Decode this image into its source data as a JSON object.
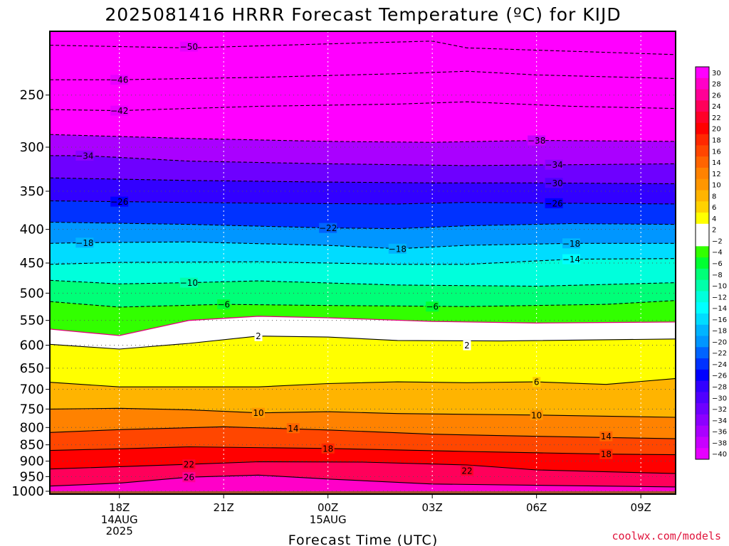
{
  "chart_data": {
    "type": "heatmap",
    "title": "2025081416 HRRR Forecast Temperature (ºC) for KIJD",
    "xlabel": "Forecast Time (UTC)",
    "ylabel": "",
    "credit": "coolwx.com/models",
    "x_ticks": [
      {
        "label": "18Z",
        "sub": [
          "14AUG",
          "2025"
        ]
      },
      {
        "label": "21Z",
        "sub": []
      },
      {
        "label": "00Z",
        "sub": [
          "15AUG"
        ]
      },
      {
        "label": "03Z",
        "sub": []
      },
      {
        "label": "06Z",
        "sub": []
      },
      {
        "label": "09Z",
        "sub": []
      }
    ],
    "x_range_hours": [
      -2,
      16
    ],
    "y_ticks": [
      250,
      300,
      350,
      400,
      450,
      500,
      550,
      600,
      650,
      700,
      750,
      800,
      850,
      900,
      950,
      1000
    ],
    "y_range_hpa": [
      200,
      1010
    ],
    "y_scale": "log",
    "colorbar_labels": [
      30,
      28,
      26,
      24,
      22,
      20,
      18,
      16,
      14,
      12,
      10,
      8,
      6,
      4,
      2,
      -2,
      -4,
      -6,
      -8,
      -10,
      -12,
      -14,
      -16,
      -18,
      -20,
      -22,
      -24,
      -26,
      -28,
      -30,
      -32,
      -34,
      -36,
      -38,
      -40
    ],
    "colorbar_colors": [
      "#ff00ff",
      "#ff00c8",
      "#ff0096",
      "#ff005a",
      "#ff0028",
      "#ff0000",
      "#ff2800",
      "#ff4600",
      "#ff6400",
      "#ff8200",
      "#ff9600",
      "#ffb400",
      "#ffd200",
      "#ffff00",
      "#ffffff",
      "#ffffff",
      "#32ff00",
      "#00ff32",
      "#00ff78",
      "#00ffaa",
      "#00ffdc",
      "#00ffff",
      "#00dcff",
      "#00b4ff",
      "#0096ff",
      "#0064ff",
      "#0032ff",
      "#0000ff",
      "#3200ff",
      "#5000ff",
      "#6e00ff",
      "#8c00ff",
      "#aa00ff",
      "#c800ff",
      "#e600ff"
    ],
    "contours": [
      {
        "level": -50,
        "points": [
          [
            -2,
            210
          ],
          [
            2,
            212
          ],
          [
            6,
            209
          ],
          [
            9,
            207
          ],
          [
            10,
            212
          ],
          [
            16,
            217
          ]
        ],
        "labels": [
          [
            2,
            211
          ]
        ]
      },
      {
        "level": -46,
        "points": [
          [
            -2,
            237
          ],
          [
            0,
            237
          ],
          [
            4,
            235
          ],
          [
            8,
            232
          ],
          [
            10,
            230
          ],
          [
            12,
            233
          ],
          [
            16,
            236
          ]
        ],
        "labels": [
          [
            0,
            237
          ]
        ]
      },
      {
        "level": -42,
        "points": [
          [
            -2,
            263
          ],
          [
            0,
            264
          ],
          [
            4,
            260
          ],
          [
            8,
            258
          ],
          [
            10,
            256
          ],
          [
            13,
            260
          ],
          [
            16,
            262
          ]
        ],
        "labels": [
          [
            0,
            264
          ]
        ]
      },
      {
        "level": -38,
        "points": [
          [
            -2,
            287
          ],
          [
            2,
            291
          ],
          [
            6,
            294
          ],
          [
            9,
            295
          ],
          [
            12,
            293
          ],
          [
            16,
            294
          ]
        ],
        "labels": [
          [
            12,
            293
          ]
        ]
      },
      {
        "level": -34,
        "points": [
          [
            -2,
            309
          ],
          [
            -1,
            309
          ],
          [
            2,
            315
          ],
          [
            6,
            318
          ],
          [
            10,
            320
          ],
          [
            13,
            319
          ],
          [
            16,
            318
          ]
        ],
        "labels": [
          [
            -1,
            309
          ],
          [
            12.5,
            319
          ]
        ]
      },
      {
        "level": -30,
        "points": [
          [
            -2,
            334
          ],
          [
            2,
            337
          ],
          [
            6,
            339
          ],
          [
            9,
            340
          ],
          [
            12,
            340
          ],
          [
            16,
            341
          ]
        ],
        "labels": [
          [
            12.5,
            340
          ]
        ]
      },
      {
        "level": -26,
        "points": [
          [
            -2,
            362
          ],
          [
            0,
            363
          ],
          [
            4,
            365
          ],
          [
            8,
            366
          ],
          [
            10,
            364
          ],
          [
            12.5,
            365
          ],
          [
            16,
            366
          ]
        ],
        "labels": [
          [
            0,
            363
          ],
          [
            12.5,
            365
          ]
        ]
      },
      {
        "level": -22,
        "points": [
          [
            -2,
            390
          ],
          [
            2,
            393
          ],
          [
            6,
            398
          ],
          [
            8,
            399
          ],
          [
            10,
            395
          ],
          [
            13,
            392
          ],
          [
            16,
            393
          ]
        ],
        "labels": [
          [
            6,
            398
          ]
        ]
      },
      {
        "level": -18,
        "points": [
          [
            -2,
            420
          ],
          [
            -1,
            419
          ],
          [
            2,
            418
          ],
          [
            6,
            423
          ],
          [
            8,
            428
          ],
          [
            10,
            423
          ],
          [
            13,
            420
          ],
          [
            16,
            420
          ]
        ],
        "labels": [
          [
            -1,
            419
          ],
          [
            8,
            428
          ],
          [
            13,
            420
          ]
        ]
      },
      {
        "level": -14,
        "points": [
          [
            -2,
            452
          ],
          [
            0,
            449
          ],
          [
            4,
            448
          ],
          [
            8,
            452
          ],
          [
            10,
            452
          ],
          [
            13,
            444
          ],
          [
            16,
            443
          ]
        ],
        "labels": [
          [
            13,
            444
          ]
        ]
      },
      {
        "level": -10,
        "points": [
          [
            -2,
            478
          ],
          [
            0,
            484
          ],
          [
            2,
            482
          ],
          [
            4,
            479
          ],
          [
            8,
            486
          ],
          [
            12,
            488
          ],
          [
            16,
            482
          ]
        ],
        "labels": [
          [
            2,
            482
          ]
        ]
      },
      {
        "level": -6,
        "points": [
          [
            -2,
            515
          ],
          [
            0,
            525
          ],
          [
            3,
            520
          ],
          [
            6,
            522
          ],
          [
            10,
            524
          ],
          [
            14,
            520
          ],
          [
            16,
            513
          ]
        ],
        "labels": [
          [
            3,
            520
          ],
          [
            9,
            524
          ]
        ]
      },
      {
        "level": 2,
        "points": [
          [
            -2,
            598
          ],
          [
            0,
            608
          ],
          [
            2,
            596
          ],
          [
            4,
            581
          ],
          [
            6,
            583
          ],
          [
            8,
            590
          ],
          [
            11,
            591
          ],
          [
            16,
            587
          ]
        ],
        "labels": [
          [
            4,
            581
          ],
          [
            10,
            600
          ]
        ]
      },
      {
        "level": 6,
        "points": [
          [
            -2,
            683
          ],
          [
            0,
            694
          ],
          [
            2,
            694
          ],
          [
            4,
            694
          ],
          [
            6,
            686
          ],
          [
            8,
            682
          ],
          [
            10,
            684
          ],
          [
            12,
            682
          ],
          [
            14,
            688
          ],
          [
            16,
            674
          ]
        ],
        "labels": [
          [
            12,
            682
          ]
        ]
      },
      {
        "level": 10,
        "points": [
          [
            -2,
            750
          ],
          [
            0,
            748
          ],
          [
            2,
            752
          ],
          [
            4,
            760
          ],
          [
            6,
            757
          ],
          [
            8,
            762
          ],
          [
            12,
            766
          ],
          [
            16,
            772
          ]
        ],
        "labels": [
          [
            4,
            760
          ],
          [
            12,
            766
          ]
        ]
      },
      {
        "level": 14,
        "points": [
          [
            -2,
            814
          ],
          [
            0,
            806
          ],
          [
            3,
            798
          ],
          [
            6,
            807
          ],
          [
            9,
            819
          ],
          [
            12,
            825
          ],
          [
            16,
            832
          ]
        ],
        "labels": [
          [
            5,
            802
          ],
          [
            14,
            825
          ]
        ]
      },
      {
        "level": 18,
        "points": [
          [
            -2,
            867
          ],
          [
            0,
            862
          ],
          [
            2,
            856
          ],
          [
            6,
            861
          ],
          [
            10,
            870
          ],
          [
            14,
            878
          ],
          [
            16,
            880
          ]
        ],
        "labels": [
          [
            6,
            861
          ],
          [
            14,
            878
          ]
        ]
      },
      {
        "level": 22,
        "points": [
          [
            -2,
            925
          ],
          [
            2,
            910
          ],
          [
            4,
            902
          ],
          [
            7,
            903
          ],
          [
            10,
            912
          ],
          [
            12,
            928
          ],
          [
            16,
            940
          ]
        ],
        "labels": [
          [
            2,
            910
          ],
          [
            10,
            930
          ]
        ]
      },
      {
        "level": 26,
        "points": [
          [
            -2,
            982
          ],
          [
            0,
            972
          ],
          [
            2,
            952
          ],
          [
            4,
            945
          ],
          [
            6,
            958
          ],
          [
            9,
            975
          ],
          [
            16,
            985
          ]
        ],
        "labels": [
          [
            2,
            952
          ]
        ]
      }
    ],
    "freezing_level": [
      [
        -2,
        567
      ],
      [
        0,
        580
      ],
      [
        2,
        550
      ],
      [
        4,
        542
      ],
      [
        6,
        545
      ],
      [
        9,
        552
      ],
      [
        12,
        555
      ],
      [
        16,
        553
      ]
    ]
  }
}
